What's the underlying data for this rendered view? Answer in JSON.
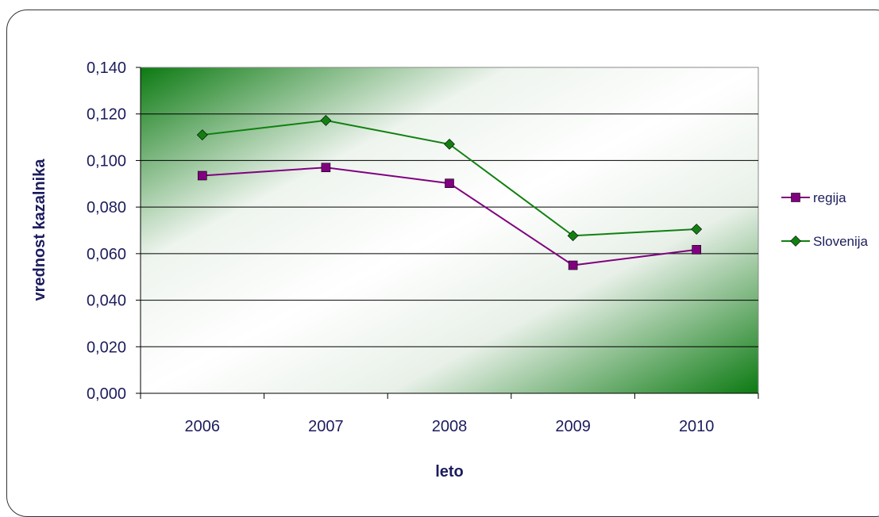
{
  "chart_data": {
    "type": "line",
    "title": "",
    "xlabel": "leto",
    "ylabel": "vrednost kazalnika",
    "categories": [
      "2006",
      "2007",
      "2008",
      "2009",
      "2010"
    ],
    "ylim": [
      0,
      0.14
    ],
    "yticks": [
      0.0,
      0.02,
      0.04,
      0.06,
      0.08,
      0.1,
      0.12,
      0.14
    ],
    "ytick_labels": [
      "0,000",
      "0,020",
      "0,040",
      "0,060",
      "0,080",
      "0,100",
      "0,120",
      "0,140"
    ],
    "grid": true,
    "legend_position": "right",
    "series": [
      {
        "name": "regija",
        "values": [
          0.0935,
          0.097,
          0.0902,
          0.055,
          0.0617
        ],
        "color": "#800080",
        "marker": "square"
      },
      {
        "name": "Slovenija",
        "values": [
          0.111,
          0.1172,
          0.107,
          0.0677,
          0.0705
        ],
        "color": "#118011",
        "marker": "diamond"
      }
    ],
    "plot_background": "green radial gradient"
  }
}
